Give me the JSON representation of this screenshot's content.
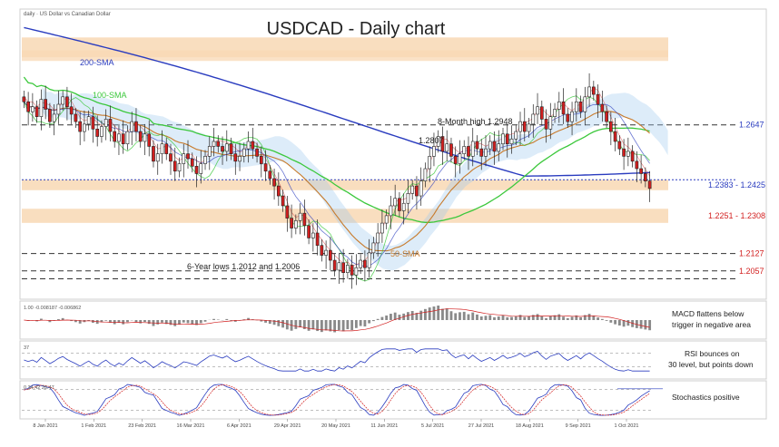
{
  "header": {
    "source_label": "daily · US Dollar vs Canadian Dollar",
    "title": "USDCAD - Daily chart"
  },
  "colors": {
    "up_candle": "#ffffff",
    "down_candle": "#d21f1f",
    "sma200": "#2a3cbf",
    "sma100": "#3cc83c",
    "sma50": "#c87a2a",
    "zone": "#f8d8b4",
    "cloud": "#9ec8ee",
    "macd_bar": "#8a8a8a",
    "rsi": "#2a3cbf",
    "stoch_k": "#2a3cbf",
    "stoch_d": "#d21f1f",
    "label_blue": "#2a3cbf",
    "label_red": "#d21f1f"
  },
  "chart_data": {
    "type": "candlestick",
    "title": "USDCAD - Daily chart",
    "ylim": [
      1.195,
      1.31
    ],
    "x_ticks": [
      "8 Jan 2021",
      "1 Feb 2021",
      "23 Feb 2021",
      "16 Mar 2021",
      "6 Apr 2021",
      "29 Apr 2021",
      "20 May 2021",
      "11 Jun 2021",
      "5 Jul 2021",
      "27 Jul 2021",
      "18 Aug 2021",
      "9 Sep 2021",
      "1 Oct 2021"
    ],
    "levels": [
      {
        "value": 1.2647,
        "label": "1.2647",
        "color": "blue",
        "style": "dash"
      },
      {
        "value": 1.2127,
        "label": "1.2127",
        "color": "red",
        "style": "dash"
      },
      {
        "value": 1.2057,
        "label": "1.2057",
        "color": "red",
        "style": "dash"
      }
    ],
    "zones": [
      {
        "from": 1.2383,
        "to": 1.2425,
        "label": "1.2383 - 1.2425",
        "color": "blue"
      },
      {
        "from": 1.2251,
        "to": 1.2308,
        "label": "1.2251 - 1.2308",
        "color": "red"
      }
    ],
    "top_zone": {
      "from": 1.292,
      "to": 1.3
    },
    "annotations": [
      {
        "text": "8-Month high 1.2948"
      },
      {
        "text": "1.2807"
      },
      {
        "text": "6-Year lows 1.2012 and 1.2006"
      },
      {
        "text": "200-SMA"
      },
      {
        "text": "100-SMA"
      },
      {
        "text": "50-SMA"
      }
    ],
    "closes": [
      1.274,
      1.27,
      1.272,
      1.268,
      1.275,
      1.271,
      1.266,
      1.269,
      1.273,
      1.276,
      1.272,
      1.269,
      1.266,
      1.262,
      1.265,
      1.268,
      1.263,
      1.26,
      1.264,
      1.267,
      1.262,
      1.258,
      1.261,
      1.257,
      1.262,
      1.266,
      1.262,
      1.258,
      1.261,
      1.256,
      1.25,
      1.253,
      1.257,
      1.253,
      1.25,
      1.246,
      1.249,
      1.253,
      1.251,
      1.248,
      1.245,
      1.249,
      1.252,
      1.256,
      1.258,
      1.256,
      1.254,
      1.257,
      1.253,
      1.25,
      1.252,
      1.255,
      1.258,
      1.255,
      1.252,
      1.249,
      1.246,
      1.243,
      1.24,
      1.236,
      1.232,
      1.227,
      1.223,
      1.226,
      1.229,
      1.224,
      1.219,
      1.221,
      1.216,
      1.212,
      1.214,
      1.21,
      1.206,
      1.209,
      1.205,
      1.208,
      1.204,
      1.207,
      1.21,
      1.207,
      1.213,
      1.217,
      1.221,
      1.225,
      1.228,
      1.232,
      1.235,
      1.23,
      1.233,
      1.237,
      1.24,
      1.236,
      1.242,
      1.247,
      1.252,
      1.256,
      1.26,
      1.254,
      1.257,
      1.252,
      1.249,
      1.253,
      1.256,
      1.252,
      1.258,
      1.255,
      1.252,
      1.255,
      1.258,
      1.254,
      1.257,
      1.261,
      1.257,
      1.259,
      1.262,
      1.266,
      1.262,
      1.265,
      1.269,
      1.272,
      1.267,
      1.263,
      1.268,
      1.271,
      1.274,
      1.269,
      1.266,
      1.27,
      1.274,
      1.27,
      1.276,
      1.28,
      1.277,
      1.273,
      1.27,
      1.266,
      1.262,
      1.258,
      1.255,
      1.252,
      1.254,
      1.25,
      1.247,
      1.245,
      1.242,
      1.239
    ],
    "macd_label": "1.00 -0.008187 -0.006862",
    "rsi_label": "37",
    "stoch_label": "0 34.42 28.47",
    "panel_notes": [
      "MACD flattens below trigger in negative area",
      "RSI bounces on 30 level, but points down",
      "Stochastics positive"
    ]
  }
}
